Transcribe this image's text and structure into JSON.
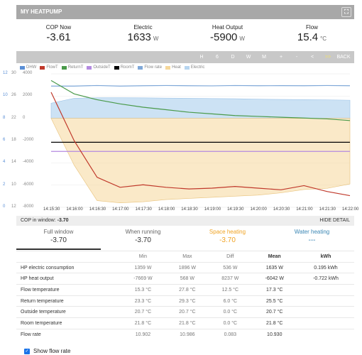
{
  "header": {
    "title": "MY HEATPUMP",
    "fullscreen_icon": "fullscreen-icon"
  },
  "stats": [
    {
      "label": "COP Now",
      "value": "-3.61",
      "unit": ""
    },
    {
      "label": "Electric",
      "value": "1633",
      "unit": "W"
    },
    {
      "label": "Heat Output",
      "value": "-5900",
      "unit": "W"
    },
    {
      "label": "Flow",
      "value": "15.4",
      "unit": "°C"
    }
  ],
  "toolbar": {
    "buttons": [
      "H",
      "6",
      "D",
      "W",
      "M",
      "+",
      "-",
      "<",
      ">>",
      "BACK"
    ],
    "active": ">>"
  },
  "legend": [
    {
      "label": "DHW",
      "color": "#5a8fd6"
    },
    {
      "label": "FlowT",
      "color": "#c0392b"
    },
    {
      "label": "ReturnT",
      "color": "#4a9a4a"
    },
    {
      "label": "OutsideT",
      "color": "#b48ae0"
    },
    {
      "label": "RoomT",
      "color": "#000000"
    },
    {
      "label": "Flow rate",
      "color": "#7fa8d8"
    },
    {
      "label": "Heat",
      "color": "#f5d79a"
    },
    {
      "label": "Electric",
      "color": "#b7d5f0"
    }
  ],
  "chart_data": {
    "type": "line",
    "x": [
      "14:15:30",
      "14:16:00",
      "14:16:30",
      "14:17:00",
      "14:17:30",
      "14:18:00",
      "14:18:30",
      "14:19:00",
      "14:19:30",
      "14:20:00",
      "14:20:30",
      "14:21:00",
      "14:21:30",
      "14:22:00"
    ],
    "y_axes": [
      {
        "ticks": [
          "30",
          "26",
          "22",
          "18",
          "14",
          "10",
          "12"
        ],
        "color": "#888"
      },
      {
        "ticks": [
          "12",
          "10",
          "8",
          "6",
          "4",
          "2",
          "0"
        ],
        "color": "#5a8fd6"
      },
      {
        "ticks": [
          "4000",
          "2000",
          "0",
          "-2000",
          "-4000",
          "-6000",
          "-8000"
        ],
        "color": "#888"
      }
    ],
    "series": [
      {
        "name": "ReturnT",
        "color": "#4a9a4a",
        "values": [
          29.2,
          27.6,
          26.9,
          26.4,
          26.0,
          25.7,
          25.4,
          25.2,
          25.0,
          24.9,
          24.8,
          24.7,
          24.6,
          24.4
        ]
      },
      {
        "name": "FlowT",
        "color": "#c0392b",
        "values": [
          27.8,
          22.0,
          17.6,
          16.4,
          16.7,
          16.4,
          16.2,
          16.3,
          16.5,
          16.3,
          16.1,
          16.6,
          15.9,
          15.4
        ]
      },
      {
        "name": "RoomT",
        "color": "#000000",
        "values": [
          21.8,
          21.8,
          21.8,
          21.8,
          21.8,
          21.8,
          21.8,
          21.8,
          21.8,
          21.8,
          21.8,
          21.8,
          21.8,
          21.8
        ]
      },
      {
        "name": "OutsideT",
        "color": "#b48ae0",
        "values": [
          20.7,
          20.7,
          20.7,
          20.7,
          20.7,
          20.7,
          20.7,
          20.7,
          20.7,
          20.7,
          20.7,
          20.7,
          20.7,
          20.7
        ]
      },
      {
        "name": "Flow rate",
        "color": "#7fa8d8",
        "values": [
          10.9,
          10.9,
          10.95,
          10.9,
          10.93,
          10.95,
          10.93,
          10.92,
          10.95,
          10.93,
          10.94,
          10.93,
          10.95,
          10.93
        ]
      },
      {
        "name": "Heat",
        "color": "#f5d79a",
        "values": [
          0,
          -4200,
          -7400,
          -7600,
          -7500,
          -7300,
          -7200,
          -7100,
          -7000,
          -6900,
          -6700,
          -6400,
          -6300,
          -5900
        ]
      },
      {
        "name": "Electric",
        "color": "#b7d5f0",
        "values": [
          1360,
          1800,
          1850,
          1850,
          1840,
          1820,
          1800,
          1780,
          1760,
          1720,
          1700,
          1680,
          1660,
          1630
        ]
      }
    ]
  },
  "cop_window": {
    "label": "COP in window:",
    "value": "-3.70",
    "hide_label": "HIDE DETAIL"
  },
  "modes": [
    {
      "label": "Full window",
      "value": "-3.70",
      "kind": "sel"
    },
    {
      "label": "When running",
      "value": "-3.70",
      "kind": ""
    },
    {
      "label": "Space heating",
      "value": "-3.70",
      "kind": "space"
    },
    {
      "label": "Water heating",
      "value": "---",
      "kind": "water"
    }
  ],
  "table": {
    "headers": [
      "",
      "Min",
      "Max",
      "Diff",
      "Mean",
      "kWh"
    ],
    "rows": [
      [
        "HP electric consumption",
        "1359 W",
        "1896 W",
        "536 W",
        "1635 W",
        "0.195 kWh"
      ],
      [
        "HP heat output",
        "-7669 W",
        "568 W",
        "8237 W",
        "-6042 W",
        "-0.722 kWh"
      ],
      [
        "Flow temperature",
        "15.3 °C",
        "27.8 °C",
        "12.5 °C",
        "17.3 °C",
        ""
      ],
      [
        "Return temperature",
        "23.3 °C",
        "29.3 °C",
        "6.0 °C",
        "25.5 °C",
        ""
      ],
      [
        "Outside temperature",
        "20.7 °C",
        "20.7 °C",
        "0.0 °C",
        "20.7 °C",
        ""
      ],
      [
        "Room temperature",
        "21.8 °C",
        "21.8 °C",
        "0.0 °C",
        "21.8 °C",
        ""
      ],
      [
        "Flow rate",
        "10.902",
        "10.986",
        "0.083",
        "10.930",
        ""
      ]
    ]
  },
  "show_flow_rate": {
    "label": "Show flow rate",
    "checked": true
  }
}
